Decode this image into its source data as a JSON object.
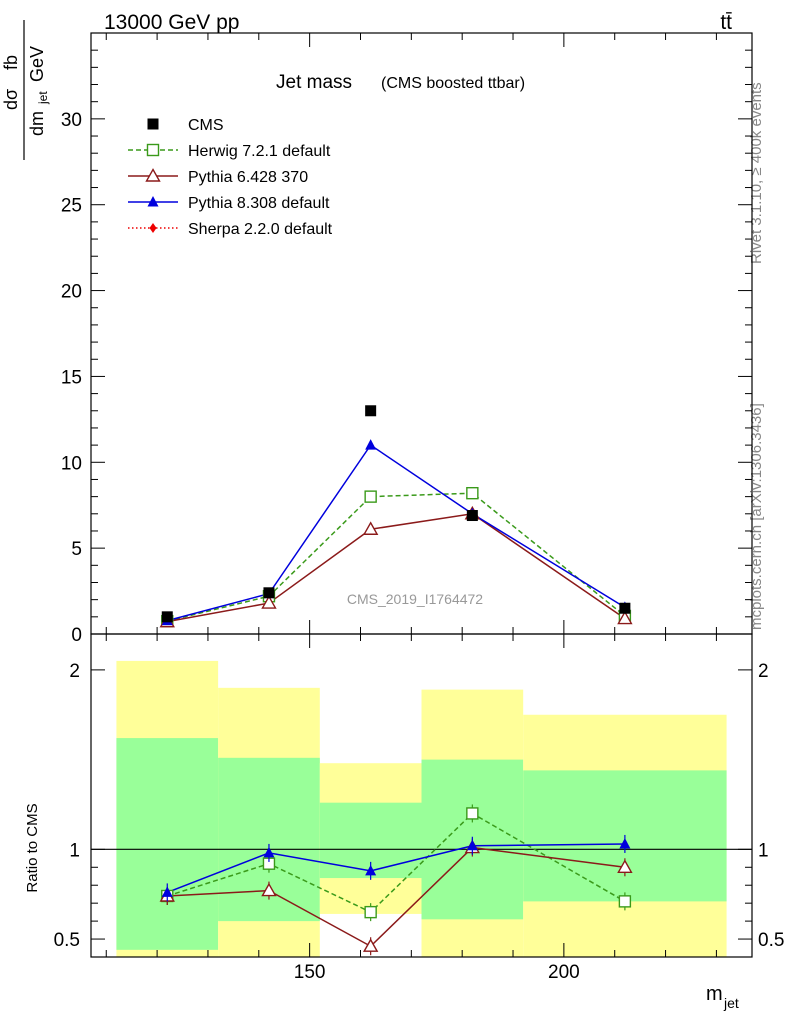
{
  "header": {
    "beam": "13000 GeV pp",
    "process": "tt̄"
  },
  "side": {
    "rivet": "Rivet 3.1.10, ≥ 400k events",
    "site": "mcplots.cern.ch [arXiv:1306.3436]"
  },
  "main": {
    "title": "Jet mass",
    "subtitle": "(CMS boosted ttbar)",
    "watermark": "CMS_2019_I1764472",
    "ylabel_num": "dσ",
    "ylabel_num2": "fb",
    "ylabel_den": "dm",
    "ylabel_den_sub": "jet",
    "ylabel_den2": "GeV"
  },
  "ratio": {
    "ylabel": "Ratio to CMS"
  },
  "xaxis": {
    "label": "m",
    "label_sub": "jet"
  },
  "legend": [
    {
      "name": "CMS",
      "color": "#000000",
      "marker": "square-filled",
      "dash": "none"
    },
    {
      "name": "Herwig 7.2.1 default",
      "color": "#3a9a1a",
      "marker": "square-open",
      "dash": "dashed"
    },
    {
      "name": "Pythia 6.428 370",
      "color": "#8b1a1a",
      "marker": "triangle-open",
      "dash": "solid"
    },
    {
      "name": "Pythia 8.308 default",
      "color": "#0000dd",
      "marker": "triangle-filled",
      "dash": "solid"
    },
    {
      "name": "Sherpa 2.2.0 default",
      "color": "#ee0000",
      "marker": "diamond-filled",
      "dash": "dotted"
    }
  ],
  "chart_data": [
    {
      "type": "scatter",
      "panel": "main",
      "x": [
        122,
        142,
        162,
        182,
        212
      ],
      "xlim": [
        107,
        237
      ],
      "ylim": [
        0,
        35
      ],
      "yticks": [
        0,
        5,
        10,
        15,
        20,
        25,
        30
      ],
      "series": [
        {
          "name": "CMS",
          "values": [
            1.0,
            2.4,
            13.0,
            6.9,
            1.5
          ]
        },
        {
          "name": "Herwig 7.2.1 default",
          "values": [
            0.75,
            2.2,
            8.0,
            8.2,
            1.05
          ]
        },
        {
          "name": "Pythia 6.428 370",
          "values": [
            0.72,
            1.8,
            6.1,
            7.0,
            0.9
          ]
        },
        {
          "name": "Pythia 8.308 default",
          "values": [
            0.78,
            2.35,
            11.0,
            7.0,
            1.55
          ]
        },
        {
          "name": "Sherpa 2.2.0 default",
          "values": []
        }
      ]
    },
    {
      "type": "scatter",
      "panel": "ratio",
      "x": [
        122,
        142,
        162,
        182,
        212
      ],
      "xlim": [
        107,
        237
      ],
      "ylim": [
        0.4,
        2.2
      ],
      "xticks": [
        150,
        200
      ],
      "yticks": [
        0.5,
        1,
        2
      ],
      "reference": 1,
      "bands": [
        {
          "x0": 112,
          "x1": 132,
          "outer": [
            0.4,
            2.05
          ],
          "inner": [
            0.44,
            1.62
          ]
        },
        {
          "x0": 132,
          "x1": 152,
          "outer": [
            0.4,
            1.9
          ],
          "inner": [
            0.6,
            1.51
          ]
        },
        {
          "x0": 152,
          "x1": 172,
          "outer": [
            0.64,
            1.48
          ],
          "inner": [
            0.84,
            1.26
          ]
        },
        {
          "x0": 172,
          "x1": 192,
          "outer": [
            0.4,
            1.89
          ],
          "inner": [
            0.61,
            1.5
          ]
        },
        {
          "x0": 192,
          "x1": 232,
          "outer": [
            0.4,
            1.75
          ],
          "inner": [
            0.71,
            1.44
          ]
        }
      ],
      "series": [
        {
          "name": "Herwig 7.2.1 default",
          "values": [
            0.74,
            0.92,
            0.65,
            1.2,
            0.71
          ]
        },
        {
          "name": "Pythia 6.428 370",
          "values": [
            0.74,
            0.77,
            0.46,
            1.01,
            0.9
          ]
        },
        {
          "name": "Pythia 8.308 default",
          "values": [
            0.76,
            0.98,
            0.88,
            1.02,
            1.03
          ]
        }
      ]
    }
  ]
}
